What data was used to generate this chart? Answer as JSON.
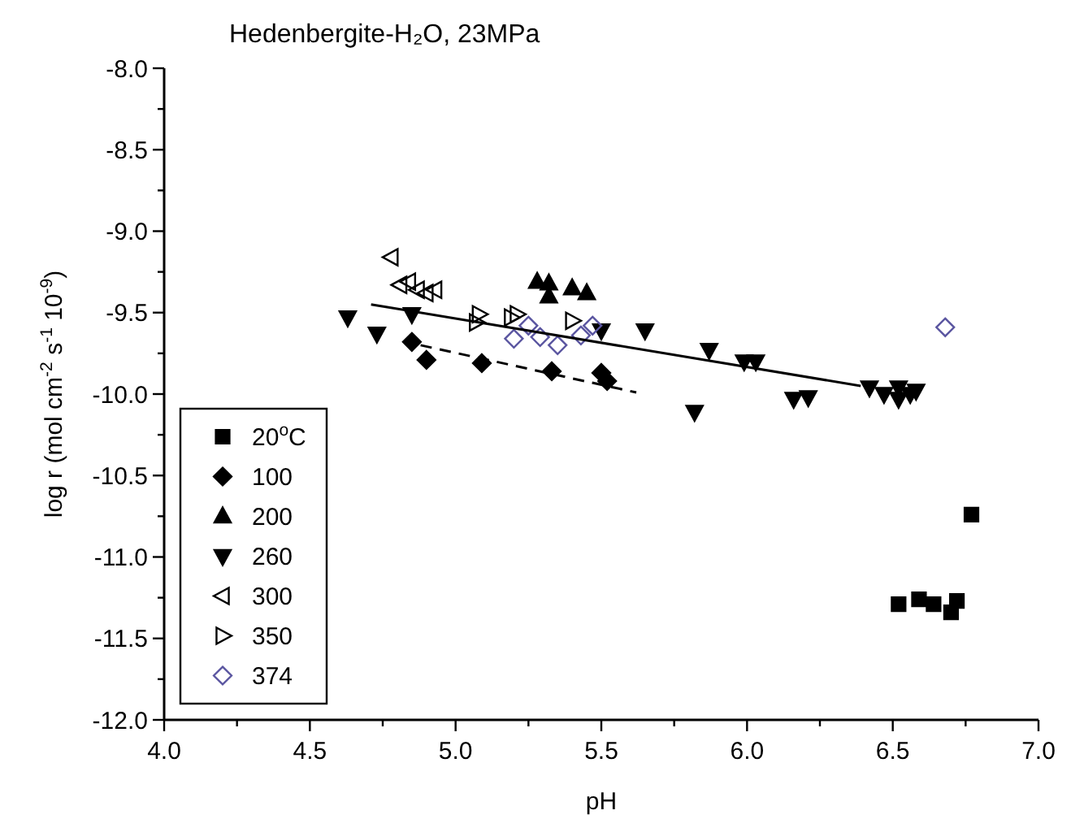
{
  "chart_data": {
    "type": "scatter",
    "title": "Hedenbergite-H₂O, 23MPa",
    "xlabel": "pH",
    "ylabel": "log r (mol cm$^{-2}$ s$^{-1}$ 10$^{-9}$)",
    "xlim": [
      4.0,
      7.0
    ],
    "ylim": [
      -12.0,
      -8.0
    ],
    "xticks": [
      {
        "value": 4.0,
        "label": "4.0"
      },
      {
        "value": 4.25,
        "label": null
      },
      {
        "value": 4.5,
        "label": "4.5"
      },
      {
        "value": 4.75,
        "label": null
      },
      {
        "value": 5.0,
        "label": "5.0"
      },
      {
        "value": 5.25,
        "label": null
      },
      {
        "value": 5.5,
        "label": "5.5"
      },
      {
        "value": 5.75,
        "label": null
      },
      {
        "value": 6.0,
        "label": "6.0"
      },
      {
        "value": 6.25,
        "label": null
      },
      {
        "value": 6.5,
        "label": "6.5"
      },
      {
        "value": 6.75,
        "label": null
      },
      {
        "value": 7.0,
        "label": "7.0"
      }
    ],
    "yticks": [
      {
        "value": -12.0,
        "label": "-12.0"
      },
      {
        "value": -11.75,
        "label": null
      },
      {
        "value": -11.5,
        "label": "-11.5"
      },
      {
        "value": -11.25,
        "label": null
      },
      {
        "value": -11.0,
        "label": "-11.0"
      },
      {
        "value": -10.75,
        "label": null
      },
      {
        "value": -10.5,
        "label": "-10.5"
      },
      {
        "value": -10.25,
        "label": null
      },
      {
        "value": -10.0,
        "label": "-10.0"
      },
      {
        "value": -9.75,
        "label": null
      },
      {
        "value": -9.5,
        "label": "-9.5"
      },
      {
        "value": -9.25,
        "label": null
      },
      {
        "value": -9.0,
        "label": "-9.0"
      },
      {
        "value": -8.75,
        "label": null
      },
      {
        "value": -8.5,
        "label": "-8.5"
      },
      {
        "value": -8.25,
        "label": null
      },
      {
        "value": -8.0,
        "label": "-8.0"
      }
    ],
    "grid": false,
    "legend": "bottom left",
    "series": [
      {
        "name": "20$^{o}$C",
        "color": "#000000",
        "marker": "square",
        "x": [
          6.77,
          6.52,
          6.59,
          6.64,
          6.72,
          6.7
        ],
        "values": [
          -10.74,
          -11.29,
          -11.26,
          -11.29,
          -11.27,
          -11.34
        ]
      },
      {
        "name": "100",
        "color": "#000000",
        "marker": "diamond",
        "x": [
          4.85,
          4.9,
          5.09,
          5.33,
          5.5,
          5.52
        ],
        "values": [
          -9.68,
          -9.79,
          -9.81,
          -9.86,
          -9.87,
          -9.92
        ]
      },
      {
        "name": "200",
        "color": "#000000",
        "marker": "triangle",
        "x": [
          5.28,
          5.32,
          5.32,
          5.4,
          5.45
        ],
        "values": [
          -9.31,
          -9.32,
          -9.4,
          -9.35,
          -9.38
        ]
      },
      {
        "name": "260",
        "color": "#000000",
        "marker": "triangle-down",
        "x": [
          4.63,
          4.73,
          4.85,
          5.5,
          5.65,
          5.87,
          5.82,
          5.99,
          6.03,
          6.16,
          6.21,
          6.42,
          6.47,
          6.52,
          6.52,
          6.56,
          6.58
        ],
        "values": [
          -9.53,
          -9.63,
          -9.51,
          -9.61,
          -9.61,
          -9.73,
          -10.11,
          -9.8,
          -9.8,
          -10.03,
          -10.02,
          -9.96,
          -10.0,
          -10.03,
          -9.96,
          -10.0,
          -9.98
        ]
      },
      {
        "name": "300",
        "color": "#000000",
        "marker": "triangle-left-open",
        "x": [
          4.78,
          4.81,
          4.84,
          4.87,
          4.9,
          4.93
        ],
        "values": [
          -9.16,
          -9.33,
          -9.31,
          -9.36,
          -9.38,
          -9.36
        ]
      },
      {
        "name": "350",
        "color": "#000000",
        "marker": "triangle-right-open",
        "x": [
          5.08,
          5.07,
          5.19,
          5.21,
          5.4
        ],
        "values": [
          -9.51,
          -9.56,
          -9.53,
          -9.51,
          -9.55
        ]
      },
      {
        "name": "374",
        "color": "#5a55a0",
        "marker": "diamond-open",
        "x": [
          5.2,
          5.29,
          5.35,
          5.43,
          5.47,
          5.25,
          6.68
        ],
        "values": [
          -9.66,
          -9.65,
          -9.7,
          -9.64,
          -9.58,
          -9.58,
          -9.59
        ]
      },
      {
        "type": "line",
        "color": "#000000",
        "marker": "none",
        "line_style": "solid",
        "x": [
          4.71,
          6.39
        ],
        "values": [
          -9.45,
          -9.95
        ]
      },
      {
        "type": "line",
        "color": "#000000",
        "marker": "none",
        "line_style": "dashed",
        "x": [
          4.88,
          5.62
        ],
        "values": [
          -9.7,
          -9.99
        ]
      }
    ]
  }
}
